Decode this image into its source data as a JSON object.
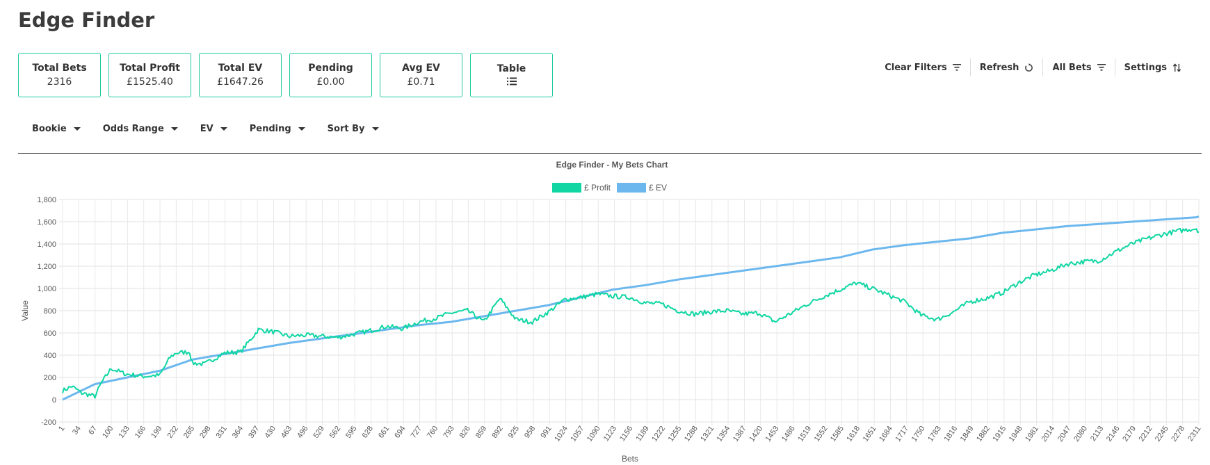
{
  "header": {
    "title": "Edge Finder"
  },
  "stats": [
    {
      "label": "Total Bets",
      "value": "2316"
    },
    {
      "label": "Total Profit",
      "value": "£1525.40"
    },
    {
      "label": "Total EV",
      "value": "£1647.26"
    },
    {
      "label": "Pending",
      "value": "£0.00"
    },
    {
      "label": "Avg EV",
      "value": "£0.71"
    }
  ],
  "table_card": {
    "label": "Table",
    "icon": "list-icon"
  },
  "toolbar": {
    "clear_filters": "Clear Filters",
    "refresh": "Refresh",
    "all_bets": "All Bets",
    "settings": "Settings"
  },
  "filters": [
    "Bookie",
    "Odds Range",
    "EV",
    "Pending",
    "Sort By"
  ],
  "colors": {
    "accent": "#1fc9a0",
    "profit": "#0fd6a3",
    "ev": "#6cb8ee"
  },
  "chart_data": {
    "type": "line",
    "title": "Edge Finder - My Bets Chart",
    "xlabel": "Bets",
    "ylabel": "Value",
    "ylim": [
      -200,
      1800
    ],
    "yticks": [
      -200,
      0,
      200,
      400,
      600,
      800,
      1000,
      1200,
      1400,
      1600,
      1800
    ],
    "x_range": [
      1,
      2316
    ],
    "xtick_labels": [
      "1",
      "34",
      "67",
      "100",
      "133",
      "166",
      "199",
      "232",
      "265",
      "298",
      "331",
      "364",
      "397",
      "430",
      "463",
      "496",
      "529",
      "562",
      "595",
      "628",
      "661",
      "694",
      "727",
      "760",
      "793",
      "826",
      "859",
      "892",
      "925",
      "958",
      "991",
      "1024",
      "1057",
      "1090",
      "1123",
      "1156",
      "1189",
      "1222",
      "1255",
      "1288",
      "1321",
      "1354",
      "1387",
      "1420",
      "1453",
      "1486",
      "1519",
      "1552",
      "1585",
      "1618",
      "1651",
      "1684",
      "1717",
      "1750",
      "1783",
      "1816",
      "1849",
      "1882",
      "1915",
      "1948",
      "1981",
      "2014",
      "2047",
      "2080",
      "2113",
      "2146",
      "2179",
      "2212",
      "2245",
      "2278",
      "2311"
    ],
    "legend": [
      "£ Profit",
      "£ EV"
    ],
    "series": [
      {
        "name": "£ Profit",
        "x": [
          1,
          20,
          40,
          67,
          80,
          100,
          130,
          166,
          199,
          220,
          232,
          260,
          265,
          290,
          331,
          364,
          400,
          430,
          463,
          496,
          529,
          562,
          595,
          628,
          661,
          694,
          727,
          760,
          793,
          826,
          859,
          892,
          925,
          958,
          991,
          1024,
          1057,
          1090,
          1123,
          1156,
          1189,
          1222,
          1255,
          1288,
          1321,
          1354,
          1387,
          1420,
          1453,
          1486,
          1519,
          1552,
          1585,
          1618,
          1651,
          1684,
          1717,
          1750,
          1783,
          1816,
          1849,
          1882,
          1915,
          1948,
          1981,
          2014,
          2047,
          2080,
          2113,
          2146,
          2179,
          2212,
          2245,
          2278,
          2311,
          2316
        ],
        "values": [
          80,
          120,
          60,
          30,
          150,
          280,
          230,
          210,
          220,
          380,
          420,
          430,
          330,
          320,
          420,
          430,
          630,
          610,
          570,
          580,
          570,
          560,
          590,
          620,
          660,
          640,
          700,
          730,
          780,
          800,
          700,
          910,
          720,
          700,
          790,
          900,
          920,
          950,
          930,
          920,
          870,
          860,
          800,
          770,
          790,
          800,
          770,
          780,
          700,
          780,
          860,
          930,
          990,
          1050,
          1000,
          940,
          880,
          760,
          720,
          790,
          880,
          910,
          960,
          1050,
          1120,
          1160,
          1220,
          1240,
          1250,
          1330,
          1400,
          1450,
          1490,
          1520,
          1540,
          1510
        ]
      },
      {
        "name": "£ EV",
        "x": [
          1,
          67,
          133,
          199,
          265,
          331,
          397,
          463,
          529,
          595,
          661,
          727,
          793,
          859,
          925,
          991,
          1057,
          1123,
          1189,
          1255,
          1321,
          1387,
          1453,
          1519,
          1585,
          1651,
          1717,
          1783,
          1849,
          1915,
          1981,
          2047,
          2113,
          2179,
          2245,
          2311,
          2316
        ],
        "values": [
          0,
          140,
          200,
          260,
          360,
          410,
          460,
          510,
          550,
          590,
          630,
          670,
          700,
          750,
          800,
          850,
          920,
          990,
          1030,
          1080,
          1120,
          1160,
          1200,
          1240,
          1280,
          1350,
          1390,
          1420,
          1450,
          1500,
          1530,
          1560,
          1580,
          1600,
          1620,
          1640,
          1647
        ]
      }
    ]
  }
}
